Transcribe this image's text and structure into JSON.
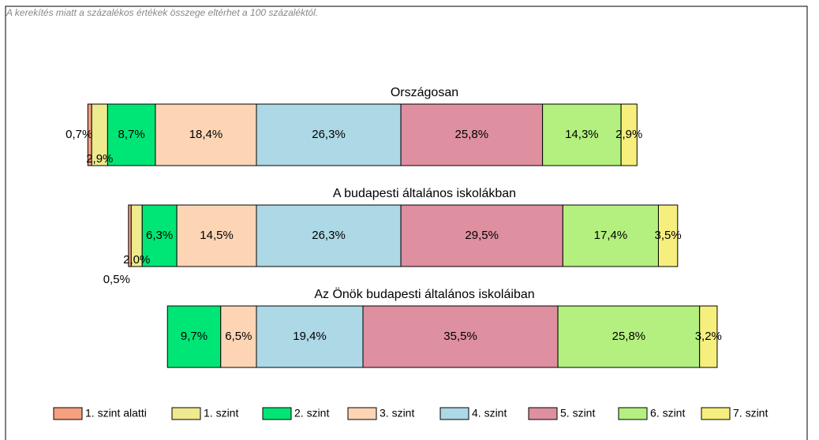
{
  "chart_data": {
    "type": "bar",
    "orientation": "horizontal",
    "stacked": true,
    "note": "A kerekítés miatt a százalékos értékek összege eltérhet a 100 százaléktól.",
    "categories": [
      "Országosan",
      "A budapesti általános iskolákban",
      "Az Önök budapesti általános iskoláiban"
    ],
    "series": [
      {
        "name": "1. szint alatti",
        "color": "#f7a07f",
        "values": [
          0.7,
          0.5,
          null
        ],
        "value_labels": [
          "0,7%",
          "0,5%",
          null
        ]
      },
      {
        "name": "1. szint",
        "color": "#efe98f",
        "values": [
          2.9,
          2.0,
          null
        ],
        "value_labels": [
          "2,9%",
          "2,0%",
          null
        ]
      },
      {
        "name": "2. szint",
        "color": "#00e676",
        "values": [
          8.7,
          6.3,
          9.7
        ],
        "value_labels": [
          "8,7%",
          "6,3%",
          "9,7%"
        ]
      },
      {
        "name": "3. szint",
        "color": "#fdd5b4",
        "values": [
          18.4,
          14.5,
          6.5
        ],
        "value_labels": [
          "18,4%",
          "14,5%",
          "6,5%"
        ]
      },
      {
        "name": "4. szint",
        "color": "#add8e6",
        "values": [
          26.3,
          26.3,
          19.4
        ],
        "value_labels": [
          "26,3%",
          "26,3%",
          "19,4%"
        ]
      },
      {
        "name": "5. szint",
        "color": "#de8fa0",
        "values": [
          25.8,
          29.5,
          35.5
        ],
        "value_labels": [
          "25,8%",
          "29,5%",
          "35,5%"
        ]
      },
      {
        "name": "6. szint",
        "color": "#b3f07f",
        "values": [
          14.3,
          17.4,
          25.8
        ],
        "value_labels": [
          "14,3%",
          "17,4%",
          "25,8%"
        ]
      },
      {
        "name": "7. szint",
        "color": "#f6ef7e",
        "values": [
          2.9,
          3.5,
          3.2
        ],
        "value_labels": [
          "2,9%",
          "3,5%",
          "3,2%"
        ]
      }
    ]
  }
}
